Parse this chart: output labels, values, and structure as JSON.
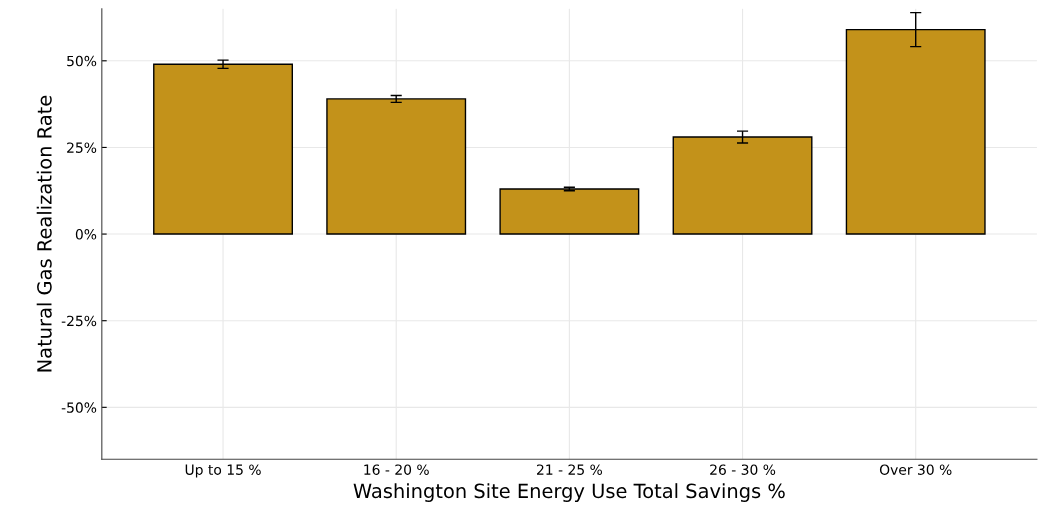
{
  "chart_data": {
    "type": "bar",
    "xlabel": "Washington Site Energy Use Total Savings %",
    "ylabel": "Natural Gas Realization Rate",
    "categories": [
      "Up to 15 %",
      "16 - 20 %",
      "21 - 25 %",
      "26 - 30 %",
      "Over 30 %"
    ],
    "values": [
      49,
      39,
      13,
      28,
      59
    ],
    "errors": [
      1.2,
      1,
      0.5,
      1.7,
      4.9
    ],
    "color": "#c3921a",
    "ylim": [
      -65,
      65
    ],
    "yticks": [
      {
        "value": -50,
        "label": "-50%"
      },
      {
        "value": -25,
        "label": "-25%"
      },
      {
        "value": 0,
        "label": "0%"
      },
      {
        "value": 25,
        "label": "25%"
      },
      {
        "value": 50,
        "label": "50%"
      }
    ],
    "grid": true
  }
}
